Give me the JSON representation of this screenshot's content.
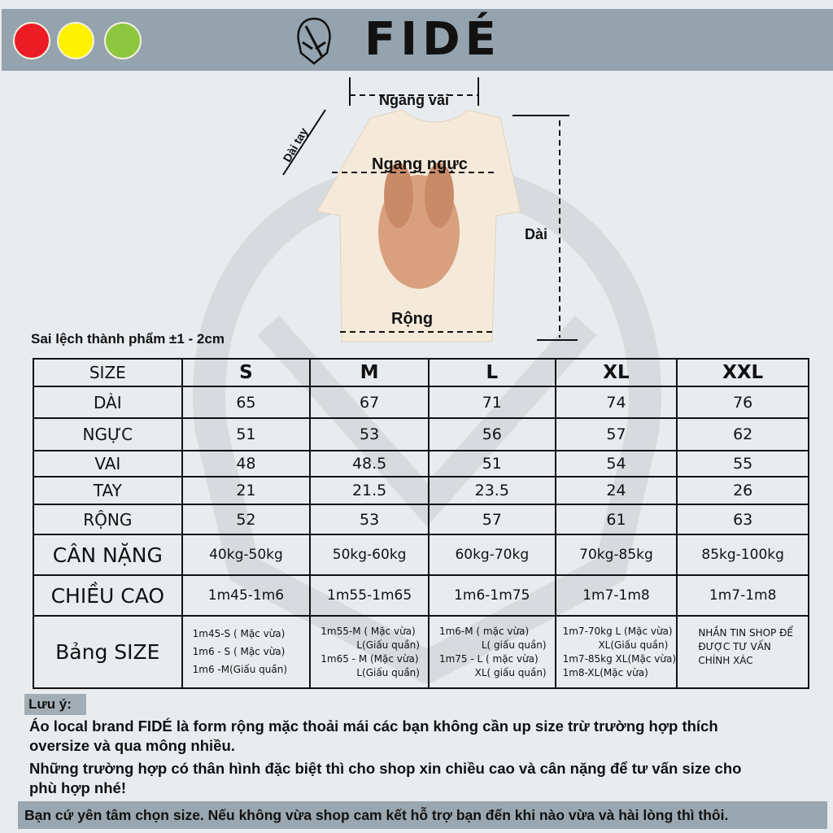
{
  "header": {
    "brand": "FIDÉ",
    "dots": [
      "#ec1c24",
      "#fff200",
      "#8dc63f"
    ]
  },
  "diagram": {
    "shoulder": "Ngang vai",
    "sleeve": "Dài tay",
    "chest": "Ngang ngực",
    "length": "Dài",
    "width": "Rộng",
    "shirt_color": "#f5ead9"
  },
  "tolerance": "Sai lệch thành phẩm ±1 - 2cm",
  "table": {
    "header": [
      "SIZE",
      "S",
      "M",
      "L",
      "XL",
      "XXL"
    ],
    "rows": [
      [
        "DÀI",
        "65",
        "67",
        "71",
        "74",
        "76"
      ],
      [
        "NGỰC",
        "51",
        "53",
        "56",
        "57",
        "62"
      ],
      [
        "VAI",
        "48",
        "48.5",
        "51",
        "54",
        "55"
      ],
      [
        "TAY",
        "21",
        "21.5",
        "23.5",
        "24",
        "26"
      ],
      [
        "RỘNG",
        "52",
        "53",
        "57",
        "61",
        "63"
      ],
      [
        "CÂN NẶNG",
        "40kg-50kg",
        "50kg-60kg",
        "60kg-70kg",
        "70kg-85kg",
        "85kg-100kg"
      ],
      [
        "CHIỀU CAO",
        "1m45-1m6",
        "1m55-1m65",
        "1m6-1m75",
        "1m7-1m8",
        "1m7-1m8"
      ]
    ],
    "guide_label": "Bảng SIZE",
    "guide": {
      "S": [
        "1m45-S ( Mặc vừa)",
        "1m6 - S ( Mặc vừa)",
        "1m6 -M(Giấu quần)"
      ],
      "M": [
        "1m55-M ( Mặc vừa)",
        "L(Giấu quần)",
        "1m65 - M (Mặc vừa)",
        "L(Giấu quần)"
      ],
      "L": [
        "1m6-M ( mặc vừa)",
        "L( giấu quần)",
        "1m75 - L ( mặc vừa)",
        "XL( giấu quần)"
      ],
      "XL": [
        "1m7-70kg L (Mặc vừa)",
        "XL(Giấu quần)",
        "1m7-85kg XL(Mặc vừa)",
        "1m8-XL(Mặc vừa)"
      ],
      "XXL": [
        "NHẮN TIN SHOP ĐỂ",
        "ĐƯỢC TƯ VẤN",
        "CHÍNH XÁC"
      ]
    }
  },
  "notes": {
    "label": "Lưu ý:",
    "lines": [
      "Áo local brand  FIDÉ  là form rộng mặc thoải mái các bạn không cần up size trừ trường hợp thích",
      "oversize và qua mông nhiều.",
      "Những trường hợp có thân hình đặc biệt thì cho shop xin chiều cao và cân nặng để tư vấn size cho",
      "phù hợp nhé!"
    ],
    "footer": "Bạn cứ yên tâm chọn size. Nếu không vừa shop cam kết hỗ trợ bạn đến khi nào vừa và hài lòng thì thôi."
  }
}
